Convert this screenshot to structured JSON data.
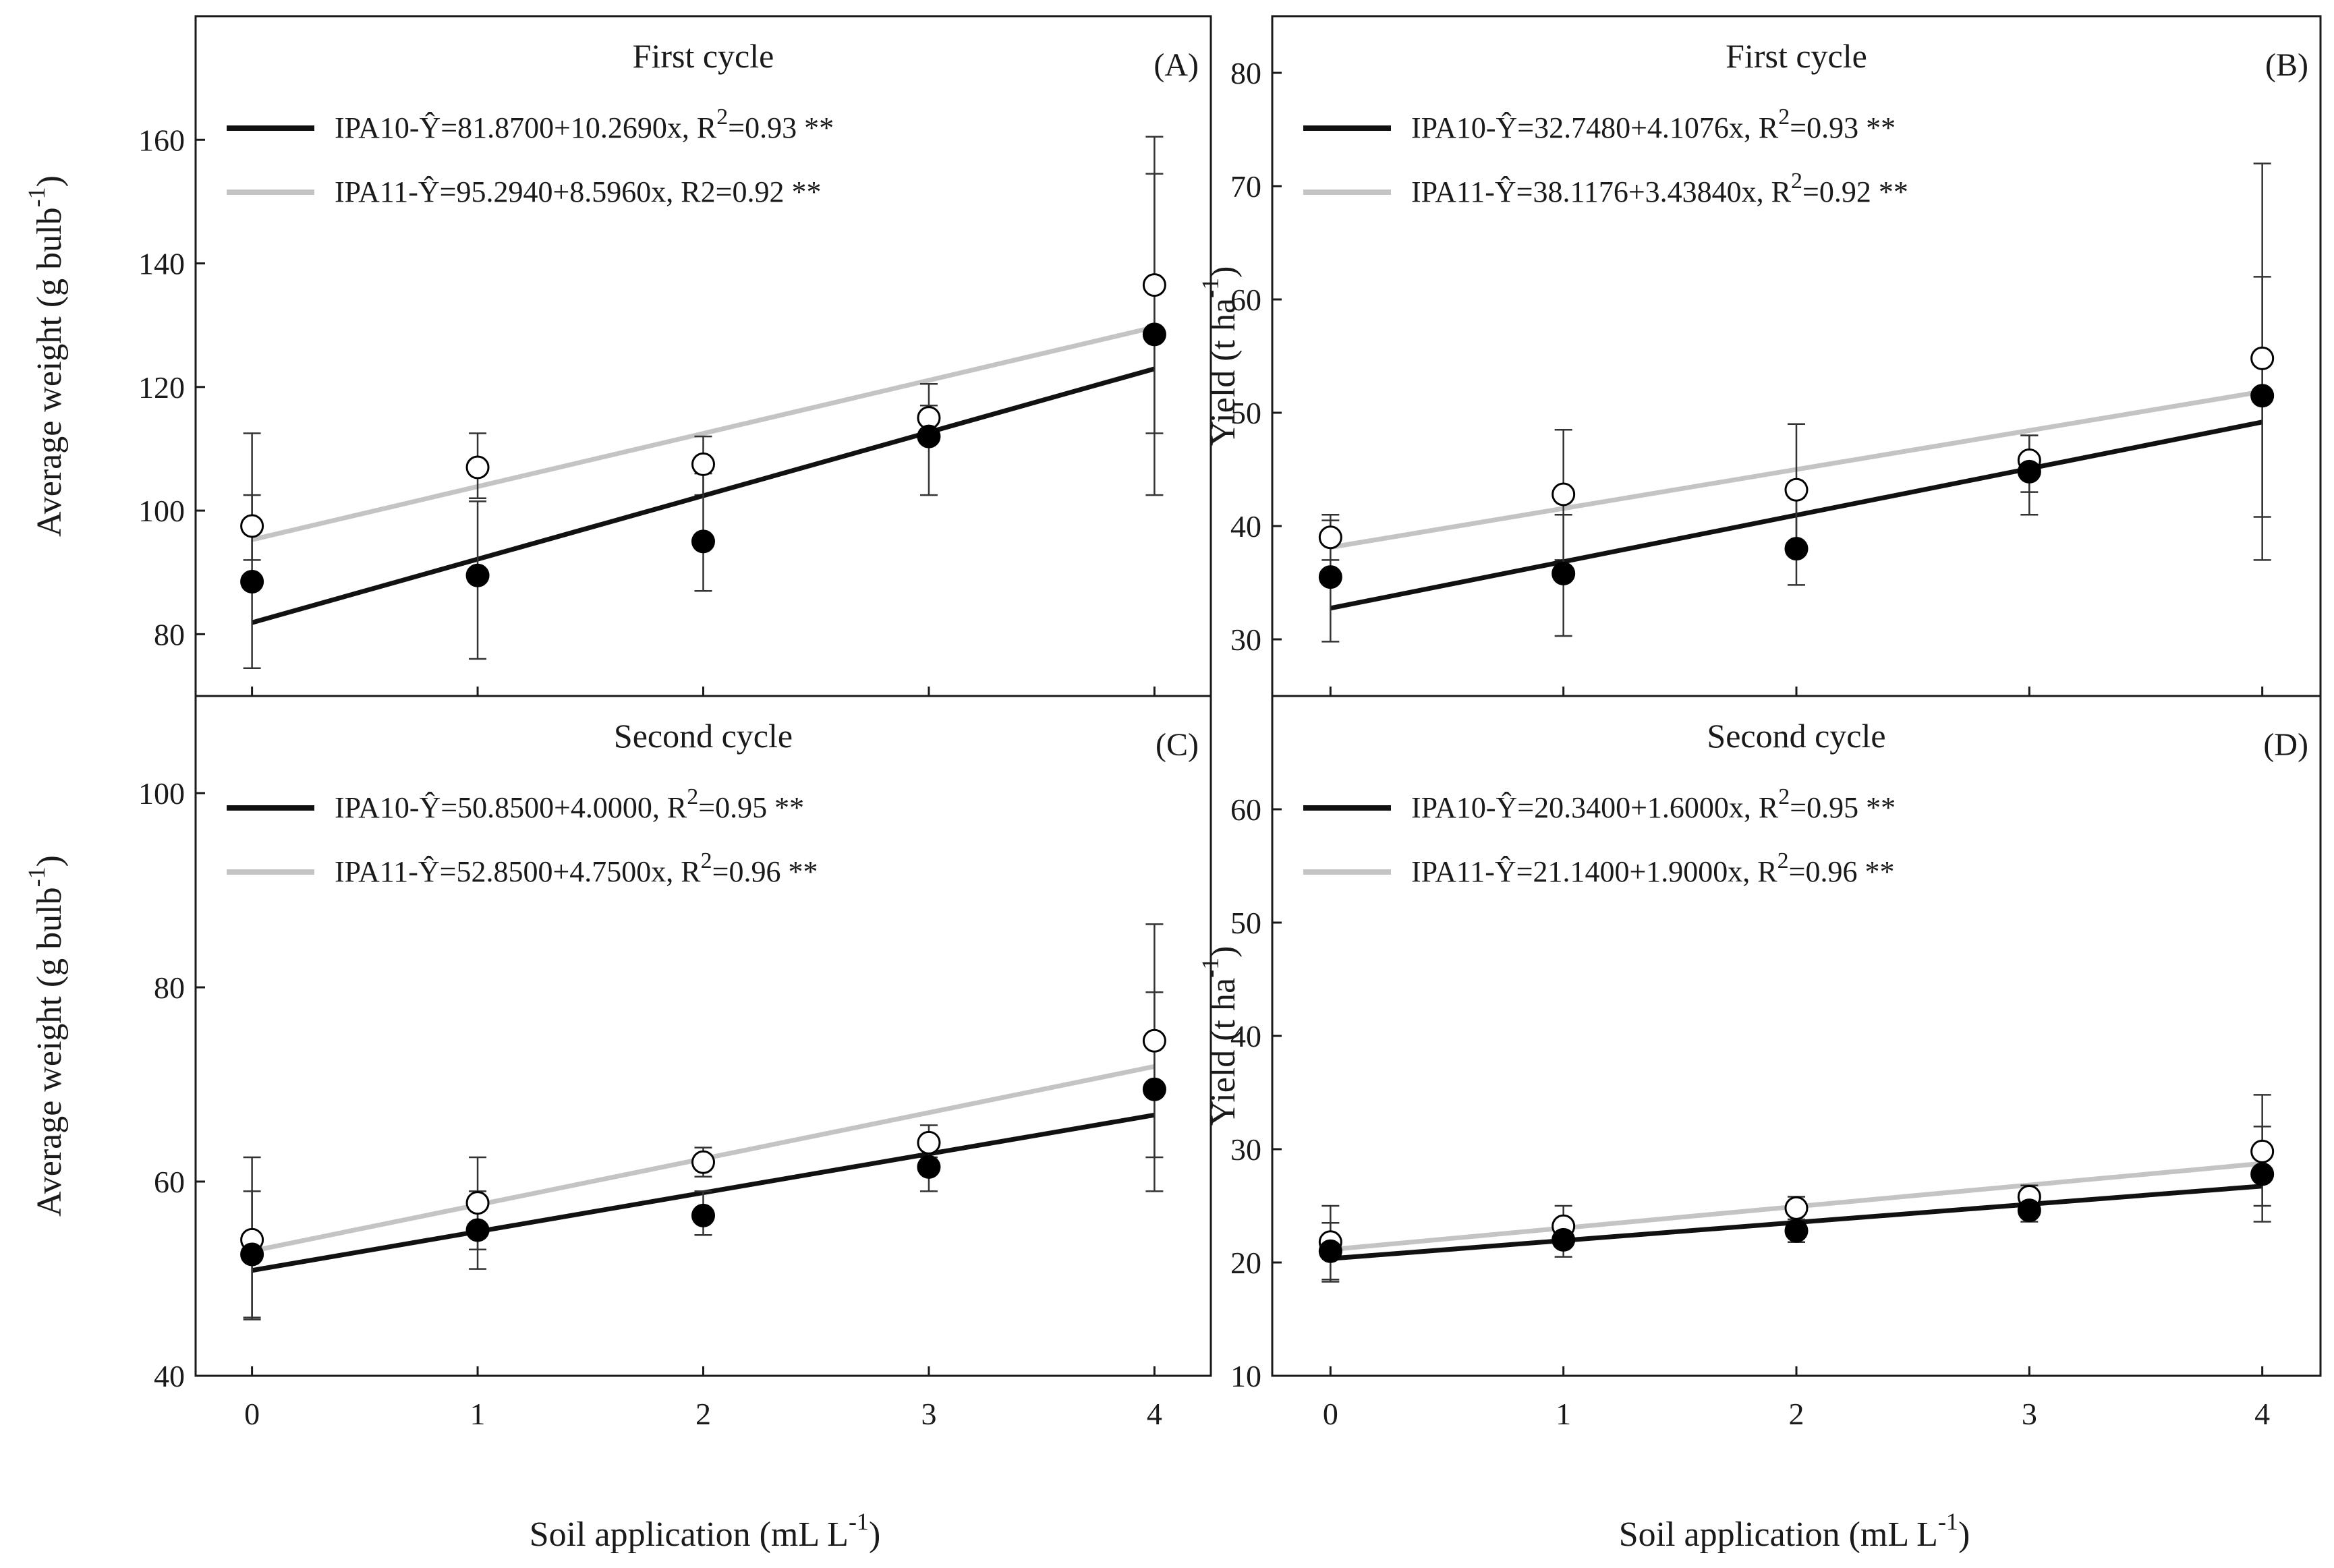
{
  "xlabel_main": "Soil application (mL L",
  "xlabel_sup": "-1",
  "xlabel_end": ")",
  "colors": {
    "IPA10": "#111111",
    "IPA11": "#c4c4c4"
  },
  "chart_data": [
    {
      "type": "scatter",
      "panel": "(A)",
      "title": "First cycle",
      "ylabel_main": "Average weight (g  bulb",
      "ylabel_sup": "-1",
      "ylabel_end": ")",
      "ylim": [
        70,
        180
      ],
      "yticks": [
        80,
        100,
        120,
        140,
        160
      ],
      "xlim": [
        -0.25,
        4.25
      ],
      "xticks": [
        0,
        1,
        2,
        3,
        4
      ],
      "series": [
        {
          "name": "IPA10",
          "marker": "filled-circle",
          "x": [
            0,
            1,
            2,
            3,
            4
          ],
          "y": [
            88.5,
            89.5,
            95,
            112,
            128.5
          ],
          "err_low": [
            74.5,
            76,
            87,
            102.5,
            102.5
          ],
          "err_high": [
            102.5,
            101.5,
            106,
            117,
            154.5
          ],
          "fit": {
            "intercept": 81.87,
            "slope": 10.269
          },
          "legend_pre": "IPA10-Ŷ=81.8700+10.2690x, R",
          "legend_sup": "2",
          "legend_post": "=0.93 **"
        },
        {
          "name": "IPA11",
          "marker": "open-circle",
          "x": [
            0,
            1,
            2,
            3,
            4
          ],
          "y": [
            97.5,
            107,
            107.5,
            115,
            136.5
          ],
          "err_low": [
            92,
            102,
            102.5,
            112.5,
            112.5
          ],
          "err_high": [
            112.5,
            112.5,
            112,
            120.5,
            160.5
          ],
          "fit": {
            "intercept": 95.294,
            "slope": 8.596
          },
          "legend_pre": "IPA11-Ŷ=95.2940+8.5960x, R2=0.92 **",
          "legend_sup": "",
          "legend_post": ""
        }
      ]
    },
    {
      "type": "scatter",
      "panel": "(B)",
      "title": "First cycle",
      "ylabel_main": "Yield (t ha",
      "ylabel_sup": "-1",
      "ylabel_end": ")",
      "ylim": [
        25,
        85
      ],
      "yticks": [
        30,
        40,
        50,
        60,
        70,
        80
      ],
      "xlim": [
        -0.25,
        4.25
      ],
      "xticks": [
        0,
        1,
        2,
        3,
        4
      ],
      "series": [
        {
          "name": "IPA10",
          "marker": "filled-circle",
          "x": [
            0,
            1,
            2,
            3,
            4
          ],
          "y": [
            35.5,
            35.8,
            38,
            44.8,
            51.5
          ],
          "err_low": [
            29.8,
            30.3,
            34.8,
            41,
            37
          ],
          "err_high": [
            40.5,
            41,
            42.5,
            48,
            62
          ],
          "fit": {
            "intercept": 32.748,
            "slope": 4.1076
          },
          "legend_pre": "IPA10-Ŷ=32.7480+4.1076x, R",
          "legend_sup": "2",
          "legend_post": "=0.93 **"
        },
        {
          "name": "IPA11",
          "marker": "open-circle",
          "x": [
            0,
            1,
            2,
            3,
            4
          ],
          "y": [
            39,
            42.8,
            43.2,
            45.8,
            54.8
          ],
          "err_low": [
            37,
            37,
            37.5,
            43,
            40.8
          ],
          "err_high": [
            41,
            48.5,
            49,
            48,
            72
          ],
          "fit": {
            "intercept": 38.1176,
            "slope": 3.4384
          },
          "legend_pre": "IPA11-Ŷ=38.1176+3.43840x, R",
          "legend_sup": "2",
          "legend_post": "=0.92 **"
        }
      ]
    },
    {
      "type": "scatter",
      "panel": "(C)",
      "title": "Second cycle",
      "ylabel_main": "Average weight (g bulb",
      "ylabel_sup": "-1",
      "ylabel_end": ")",
      "ylim": [
        40,
        110
      ],
      "yticks": [
        40,
        60,
        80,
        100
      ],
      "xlim": [
        -0.25,
        4.25
      ],
      "xticks": [
        0,
        1,
        2,
        3,
        4
      ],
      "series": [
        {
          "name": "IPA10",
          "marker": "filled-circle",
          "x": [
            0,
            1,
            2,
            3,
            4
          ],
          "y": [
            52.5,
            55,
            56.5,
            61.5,
            69.5
          ],
          "err_low": [
            46,
            51,
            54.5,
            59,
            59
          ],
          "err_high": [
            59,
            59,
            59,
            64,
            79.5
          ],
          "fit": {
            "intercept": 50.85,
            "slope": 4.0
          },
          "legend_pre": "IPA10-Ŷ=50.8500+4.0000, R",
          "legend_sup": "2",
          "legend_post": "=0.95 **"
        },
        {
          "name": "IPA11",
          "marker": "open-circle",
          "x": [
            0,
            1,
            2,
            3,
            4
          ],
          "y": [
            54,
            57.8,
            62,
            64,
            74.5
          ],
          "err_low": [
            45.8,
            53,
            60.5,
            62.5,
            62.5
          ],
          "err_high": [
            62.5,
            62.5,
            63.5,
            65.8,
            86.5
          ],
          "fit": {
            "intercept": 52.85,
            "slope": 4.75
          },
          "legend_pre": "IPA11-Ŷ=52.8500+4.7500x, R",
          "legend_sup": "2",
          "legend_post": "=0.96 **"
        }
      ]
    },
    {
      "type": "scatter",
      "panel": "(D)",
      "title": "Second cycle",
      "ylabel_main": "Yield (t ha",
      "ylabel_sup": "-1",
      "ylabel_end": ")",
      "ylim": [
        10,
        70
      ],
      "yticks": [
        10,
        20,
        30,
        40,
        50,
        60
      ],
      "xlim": [
        -0.25,
        4.25
      ],
      "xticks": [
        0,
        1,
        2,
        3,
        4
      ],
      "series": [
        {
          "name": "IPA10",
          "marker": "filled-circle",
          "x": [
            0,
            1,
            2,
            3,
            4
          ],
          "y": [
            21,
            22,
            22.8,
            24.6,
            27.8
          ],
          "err_low": [
            18.5,
            20.5,
            21.8,
            23.6,
            23.6
          ],
          "err_high": [
            23.5,
            23.5,
            23.8,
            25.6,
            32
          ],
          "fit": {
            "intercept": 20.34,
            "slope": 1.6
          },
          "legend_pre": "IPA10-Ŷ=20.3400+1.6000x, R",
          "legend_sup": "2",
          "legend_post": "=0.95 **"
        },
        {
          "name": "IPA11",
          "marker": "open-circle",
          "x": [
            0,
            1,
            2,
            3,
            4
          ],
          "y": [
            21.8,
            23.2,
            24.8,
            25.8,
            29.8
          ],
          "err_low": [
            18.3,
            21.5,
            23.8,
            24.8,
            25
          ],
          "err_high": [
            25,
            25,
            25.8,
            26.8,
            34.8
          ],
          "fit": {
            "intercept": 21.14,
            "slope": 1.9
          },
          "legend_pre": "IPA11-Ŷ=21.1400+1.9000x, R",
          "legend_sup": "2",
          "legend_post": "=0.96 **"
        }
      ]
    }
  ]
}
